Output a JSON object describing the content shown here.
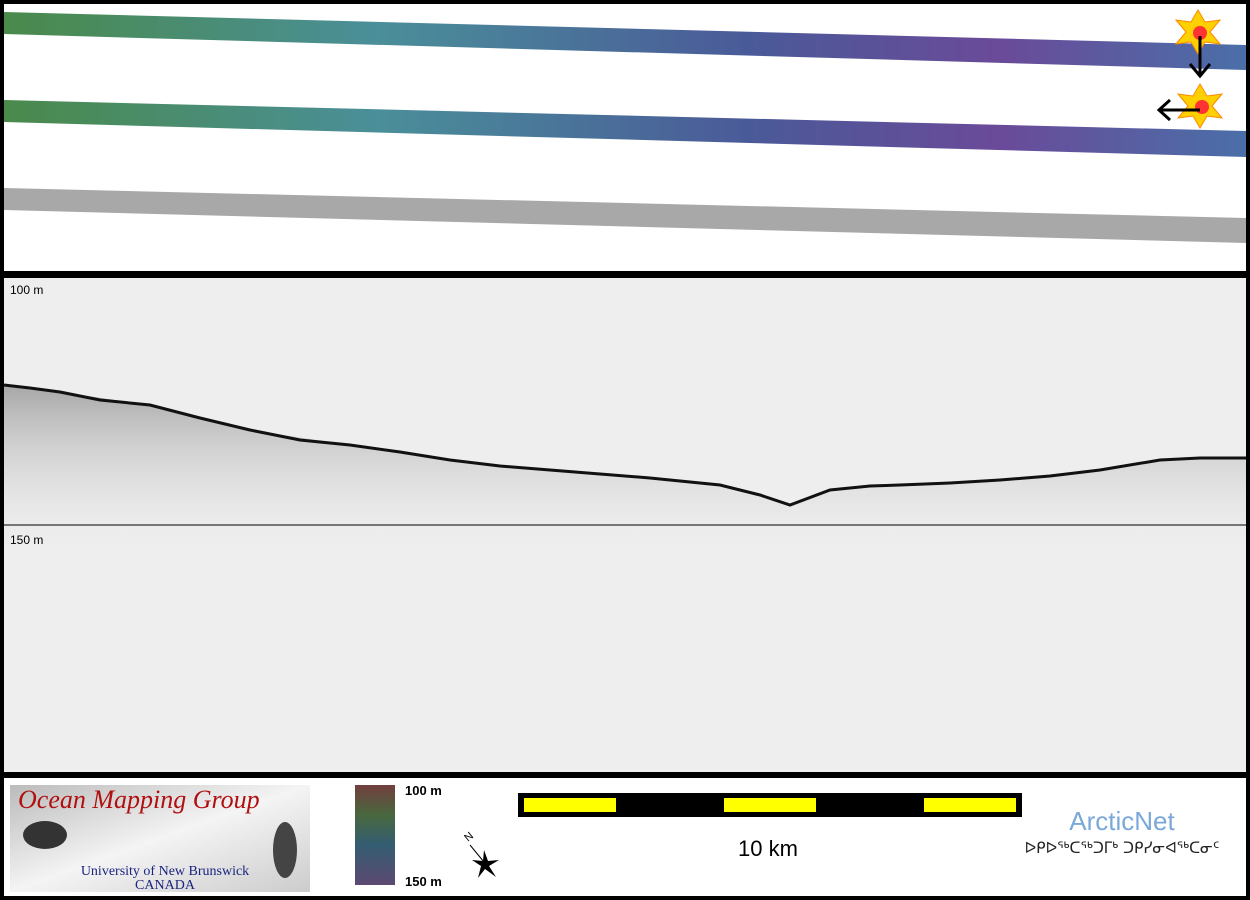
{
  "profile": {
    "depth_labels": [
      "100 m",
      "150 m"
    ]
  },
  "footer": {
    "logo": {
      "title": "Ocean Mapping Group",
      "subtitle": "University of New Brunswick",
      "country": "CANADA"
    },
    "colorbar": {
      "top_label": "100 m",
      "bottom_label": "150 m"
    },
    "compass": "N",
    "scale_bar": "10 km",
    "arcticnet": {
      "name": "ArcticNet",
      "syllabics": "ᐅᑭᐅᖅᑕᖅᑐᒥᒃ ᑐᑭᓯᓂᐊᖅᑕᓂᑦ"
    }
  }
}
